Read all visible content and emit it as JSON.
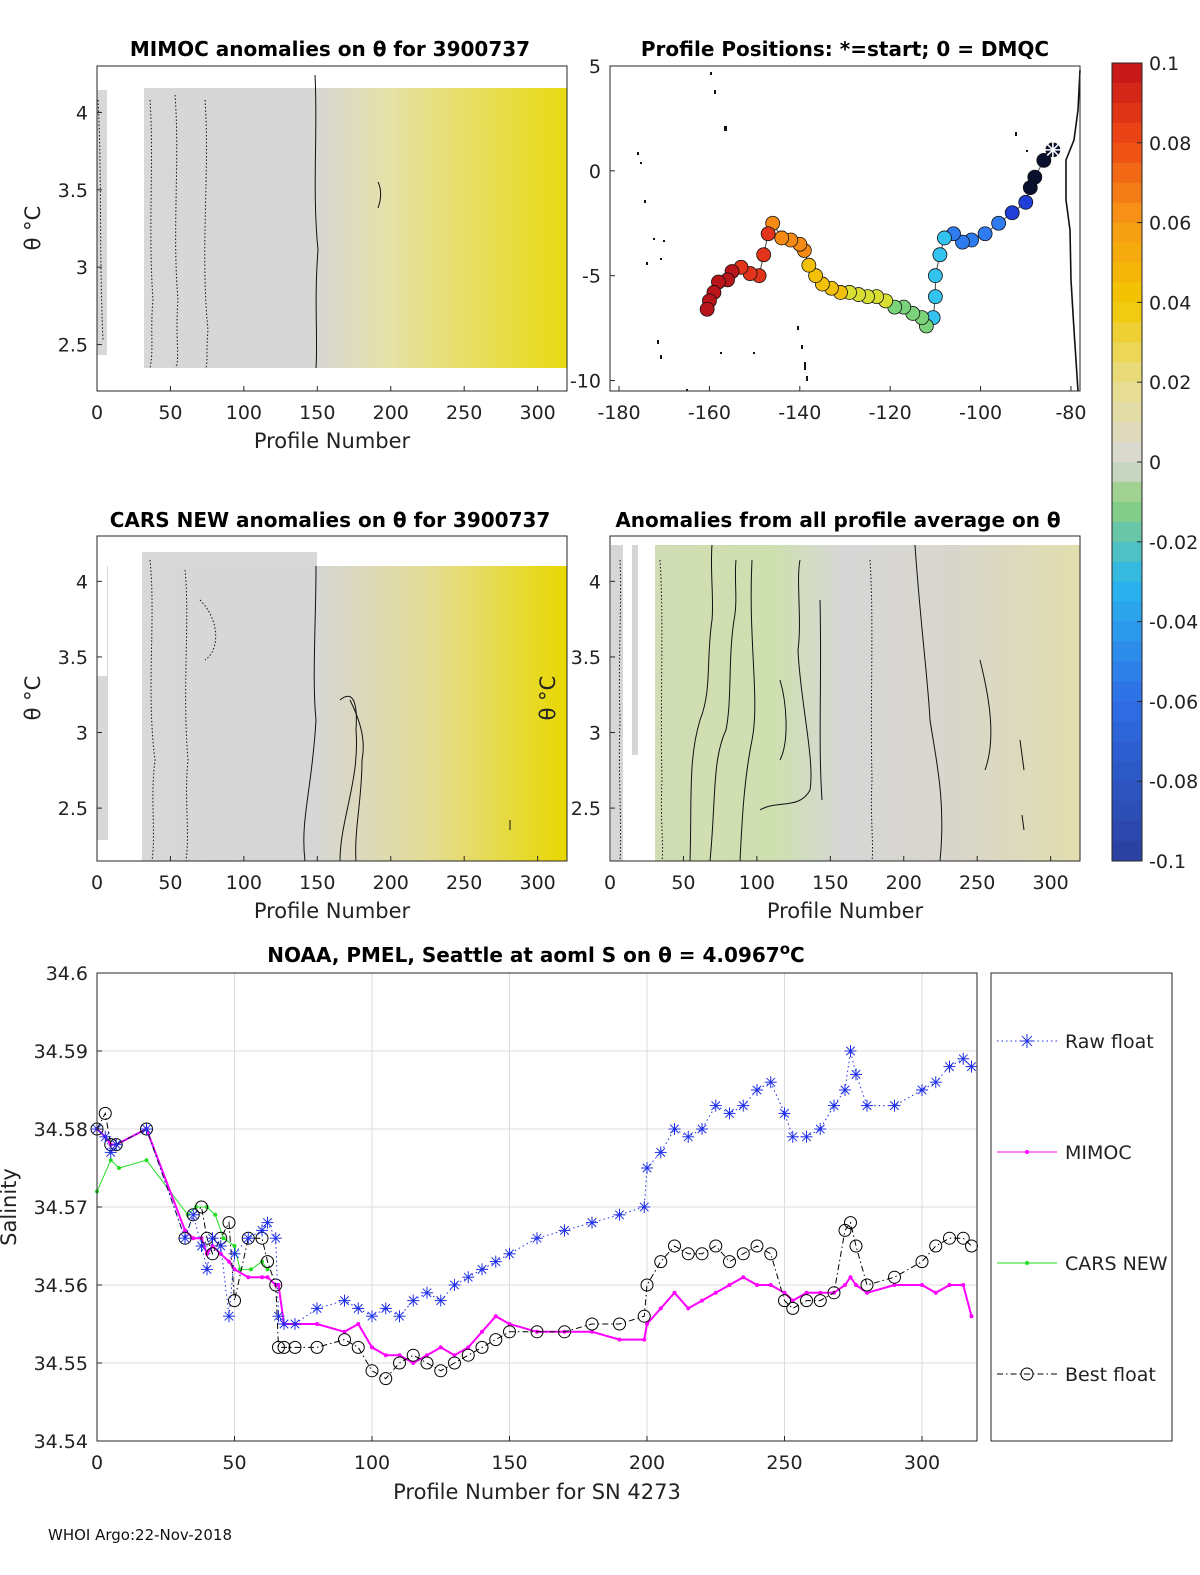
{
  "footer": "WHOI Argo:22-Nov-2018",
  "colors": {
    "raw": "#1f2fe8",
    "mimoc": "#ff00ff",
    "cars": "#22dd22",
    "best": "#000000",
    "anomaly_gray": "#d6d6d6",
    "anomaly_yellow": "#e8dc1e"
  },
  "chart_data": [
    {
      "type": "heatmap",
      "id": "mimoc",
      "title": "MIMOC anomalies on θ  for 3900737",
      "xlabel": "Profile Number",
      "ylabel": "θ °C",
      "xlim": [
        0,
        320
      ],
      "ylim": [
        2.2,
        4.3
      ],
      "xticks": [
        0,
        50,
        100,
        150,
        200,
        250,
        300
      ],
      "yticks": [
        2.5,
        3,
        3.5,
        4
      ],
      "x_tick_labels": [
        "0",
        "50",
        "100",
        "150",
        "200",
        "250",
        "300"
      ],
      "y_tick_labels": [
        "2.5",
        "3",
        "3.5",
        "4"
      ],
      "anomaly_trend": {
        "gray_until_profile": 150,
        "max_anomaly": 0.028
      }
    },
    {
      "type": "scatter",
      "id": "positions",
      "title": "Profile Positions: *=start; 0 = DMQC",
      "xlim": [
        -182,
        -78
      ],
      "ylim": [
        -10.5,
        5
      ],
      "xticks": [
        -180,
        -160,
        -140,
        -120,
        -100,
        -80
      ],
      "yticks": [
        -10,
        -5,
        0,
        5
      ],
      "x_tick_labels": [
        "-180",
        "-160",
        "-140",
        "-120",
        "-100",
        "-80"
      ],
      "y_tick_labels": [
        "-10",
        "-5",
        "0",
        "5"
      ],
      "start": [
        -84,
        1
      ],
      "track": [
        [
          -84,
          1
        ],
        [
          -86,
          0.5
        ],
        [
          -88,
          -0.3
        ],
        [
          -89,
          -0.8
        ],
        [
          -90,
          -1.5
        ],
        [
          -93,
          -2
        ],
        [
          -96,
          -2.5
        ],
        [
          -99,
          -3
        ],
        [
          -102,
          -3.3
        ],
        [
          -104,
          -3.4
        ],
        [
          -106,
          -3
        ],
        [
          -108,
          -3.2
        ],
        [
          -109,
          -4
        ],
        [
          -110,
          -5
        ],
        [
          -110,
          -6
        ],
        [
          -110.5,
          -7
        ],
        [
          -112,
          -7.4
        ],
        [
          -113,
          -7
        ],
        [
          -115,
          -6.8
        ],
        [
          -117,
          -6.5
        ],
        [
          -119,
          -6.5
        ],
        [
          -121,
          -6.2
        ],
        [
          -123,
          -6
        ],
        [
          -125,
          -6
        ],
        [
          -127,
          -5.9
        ],
        [
          -129,
          -5.8
        ],
        [
          -131,
          -5.8
        ],
        [
          -133,
          -5.6
        ],
        [
          -135,
          -5.4
        ],
        [
          -136.5,
          -5
        ],
        [
          -138,
          -4.5
        ],
        [
          -139,
          -3.8
        ],
        [
          -140,
          -3.5
        ],
        [
          -142,
          -3.3
        ],
        [
          -144,
          -3.2
        ],
        [
          -146,
          -2.5
        ],
        [
          -147,
          -3
        ],
        [
          -148,
          -4
        ],
        [
          -149,
          -5
        ],
        [
          -151,
          -4.9
        ],
        [
          -153,
          -4.6
        ],
        [
          -155,
          -4.8
        ],
        [
          -156,
          -5.2
        ],
        [
          -158,
          -5.3
        ],
        [
          -159,
          -5.8
        ],
        [
          -160,
          -6.2
        ],
        [
          -160.5,
          -6.6
        ]
      ],
      "colorbar": {
        "min": -0.1,
        "max": 0.1,
        "ticks": [
          0.1,
          0.08,
          0.06,
          0.04,
          0.02,
          0,
          -0.02,
          -0.04,
          -0.06,
          -0.08,
          -0.1
        ],
        "tick_labels": [
          "0.1",
          "0.08",
          "0.06",
          "0.04",
          "0.02",
          "0",
          "-0.02",
          "-0.04",
          "-0.06",
          "-0.08",
          "-0.1"
        ]
      }
    },
    {
      "type": "heatmap",
      "id": "cars",
      "title": "CARS NEW anomalies on θ for 3900737",
      "xlabel": "Profile Number",
      "ylabel": "θ °C",
      "xlim": [
        0,
        320
      ],
      "ylim": [
        2.15,
        4.3
      ],
      "xticks": [
        0,
        50,
        100,
        150,
        200,
        250,
        300
      ],
      "yticks": [
        2.5,
        3,
        3.5,
        4
      ],
      "x_tick_labels": [
        "0",
        "50",
        "100",
        "150",
        "200",
        "250",
        "300"
      ],
      "y_tick_labels": [
        "2.5",
        "3",
        "3.5",
        "4"
      ],
      "anomaly_trend": {
        "gray_until_profile": 150,
        "max_anomaly": 0.03
      }
    },
    {
      "type": "heatmap",
      "id": "allprof",
      "title": "Anomalies from all profile average on θ",
      "xlabel": "Profile Number",
      "ylabel": "θ °C",
      "xlim": [
        0,
        320
      ],
      "ylim": [
        2.15,
        4.3
      ],
      "xticks": [
        0,
        50,
        100,
        150,
        200,
        250,
        300
      ],
      "yticks": [
        2.5,
        3,
        3.5,
        4
      ],
      "x_tick_labels": [
        "0",
        "50",
        "100",
        "150",
        "200",
        "250",
        "300"
      ],
      "y_tick_labels": [
        "2.5",
        "3",
        "3.5",
        "4"
      ],
      "anomaly_trend": {
        "green_until_profile": 110,
        "min_anomaly": -0.012,
        "max_anomaly": 0.01
      }
    },
    {
      "type": "line",
      "id": "salinity",
      "title": "NOAA, PMEL, Seattle at aoml S on θ = 4.0967",
      "title_sup": "o",
      "title_unit": "C",
      "xlabel": "Profile Number for SN 4273",
      "ylabel": "Salinity",
      "xlim": [
        0,
        320
      ],
      "ylim": [
        34.54,
        34.6
      ],
      "xticks": [
        0,
        50,
        100,
        150,
        200,
        250,
        300
      ],
      "yticks": [
        34.54,
        34.55,
        34.56,
        34.57,
        34.58,
        34.59,
        34.6
      ],
      "x_tick_labels": [
        "0",
        "50",
        "100",
        "150",
        "200",
        "250",
        "300"
      ],
      "y_tick_labels": [
        "34.54",
        "34.55",
        "34.56",
        "34.57",
        "34.58",
        "34.59",
        "34.6"
      ],
      "grid": true,
      "legend": [
        "Raw float",
        "MIMOC",
        "CARS NEW",
        "Best float"
      ],
      "series": [
        {
          "name": "Raw float",
          "x": [
            0,
            3,
            5,
            7,
            18,
            32,
            35,
            38,
            40,
            42,
            45,
            48,
            50,
            55,
            60,
            62,
            65,
            66,
            68,
            72,
            80,
            90,
            95,
            100,
            105,
            110,
            115,
            120,
            125,
            130,
            135,
            140,
            145,
            150,
            160,
            170,
            180,
            190,
            199,
            200,
            205,
            210,
            215,
            220,
            225,
            230,
            235,
            240,
            245,
            250,
            253,
            258,
            263,
            268,
            272,
            274,
            276,
            280,
            290,
            300,
            305,
            310,
            315,
            318
          ],
          "y": [
            34.58,
            34.579,
            34.577,
            34.578,
            34.58,
            34.566,
            34.569,
            34.565,
            34.562,
            34.566,
            34.565,
            34.556,
            34.564,
            34.566,
            34.567,
            34.568,
            34.566,
            34.556,
            34.555,
            34.555,
            34.557,
            34.558,
            34.557,
            34.556,
            34.557,
            34.556,
            34.558,
            34.559,
            34.558,
            34.56,
            34.561,
            34.562,
            34.563,
            34.564,
            34.566,
            34.567,
            34.568,
            34.569,
            34.57,
            34.575,
            34.577,
            34.58,
            34.579,
            34.58,
            34.583,
            34.582,
            34.583,
            34.585,
            34.586,
            34.582,
            34.579,
            34.579,
            34.58,
            34.583,
            34.585,
            34.59,
            34.587,
            34.583,
            34.583,
            34.585,
            34.586,
            34.588,
            34.589,
            34.588
          ]
        },
        {
          "name": "MIMOC",
          "x": [
            0,
            3,
            5,
            7,
            18,
            32,
            35,
            38,
            40,
            42,
            45,
            48,
            50,
            55,
            60,
            62,
            65,
            66,
            68,
            72,
            80,
            90,
            95,
            100,
            105,
            110,
            115,
            120,
            125,
            130,
            135,
            140,
            145,
            150,
            160,
            170,
            180,
            190,
            199,
            200,
            205,
            210,
            215,
            220,
            225,
            230,
            235,
            240,
            245,
            250,
            253,
            258,
            263,
            268,
            272,
            274,
            276,
            280,
            290,
            300,
            305,
            310,
            315,
            318
          ],
          "y": [
            34.58,
            34.579,
            34.578,
            34.578,
            34.58,
            34.567,
            34.566,
            34.566,
            34.564,
            34.565,
            34.564,
            34.563,
            34.562,
            34.561,
            34.561,
            34.561,
            34.56,
            34.56,
            34.555,
            34.555,
            34.555,
            34.554,
            34.555,
            34.552,
            34.551,
            34.551,
            34.55,
            34.551,
            34.552,
            34.551,
            34.552,
            34.554,
            34.556,
            34.555,
            34.554,
            34.554,
            34.554,
            34.553,
            34.553,
            34.555,
            34.557,
            34.559,
            34.557,
            34.558,
            34.559,
            34.56,
            34.561,
            34.56,
            34.56,
            34.559,
            34.558,
            34.559,
            34.559,
            34.559,
            34.56,
            34.561,
            34.56,
            34.559,
            34.56,
            34.56,
            34.559,
            34.56,
            34.56,
            34.556
          ]
        },
        {
          "name": "CARS NEW",
          "x": [
            0,
            5,
            8,
            18,
            33,
            36,
            40,
            43,
            46,
            50,
            52,
            56,
            60,
            62
          ],
          "y": [
            34.572,
            34.576,
            34.575,
            34.576,
            34.569,
            34.57,
            34.57,
            34.569,
            34.566,
            34.565,
            34.562,
            34.562,
            34.563,
            34.562
          ]
        },
        {
          "name": "Best float",
          "x": [
            0,
            3,
            5,
            7,
            18,
            32,
            35,
            38,
            40,
            42,
            45,
            48,
            50,
            55,
            60,
            62,
            65,
            66,
            68,
            72,
            80,
            90,
            95,
            100,
            105,
            110,
            115,
            120,
            125,
            130,
            135,
            140,
            145,
            150,
            160,
            170,
            180,
            190,
            199,
            200,
            205,
            210,
            215,
            220,
            225,
            230,
            235,
            240,
            245,
            250,
            253,
            258,
            263,
            268,
            272,
            274,
            276,
            280,
            290,
            300,
            305,
            310,
            315,
            318
          ],
          "y": [
            34.58,
            34.582,
            34.578,
            34.578,
            34.58,
            34.566,
            34.569,
            34.57,
            34.566,
            34.564,
            34.566,
            34.568,
            34.558,
            34.566,
            34.566,
            34.563,
            34.56,
            34.552,
            34.552,
            34.552,
            34.552,
            34.553,
            34.552,
            34.549,
            34.548,
            34.55,
            34.551,
            34.55,
            34.549,
            34.55,
            34.551,
            34.552,
            34.553,
            34.554,
            34.554,
            34.554,
            34.555,
            34.555,
            34.556,
            34.56,
            34.563,
            34.565,
            34.564,
            34.564,
            34.565,
            34.563,
            34.564,
            34.565,
            34.564,
            34.558,
            34.557,
            34.558,
            34.558,
            34.559,
            34.567,
            34.568,
            34.565,
            34.56,
            34.561,
            34.563,
            34.565,
            34.566,
            34.566,
            34.565
          ]
        }
      ]
    }
  ]
}
